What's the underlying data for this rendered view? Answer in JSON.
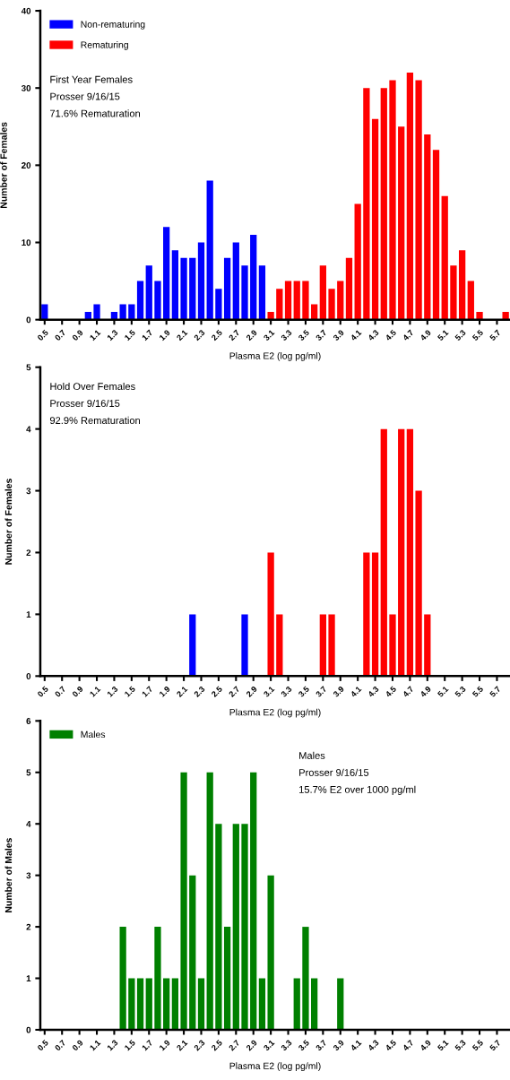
{
  "chart_data": [
    {
      "type": "bar",
      "xlabel": "Plasma E2 (log pg/ml)",
      "ylabel": "Number of Females",
      "annotations": [
        "First Year Females",
        "Prosser 9/16/15",
        "71.6% Rematuration"
      ],
      "series": [
        {
          "name": "Non-rematuring",
          "color": "#0000ff",
          "x": [
            0.5,
            0.6,
            0.7,
            0.8,
            0.9,
            1.0,
            1.1,
            1.2,
            1.3,
            1.4,
            1.5,
            1.6,
            1.7,
            1.8,
            1.9,
            2.0,
            2.1,
            2.2,
            2.3,
            2.4,
            2.5,
            2.6,
            2.7,
            2.8,
            2.9,
            3.0
          ],
          "values": [
            2,
            0,
            0,
            0,
            0,
            1,
            2,
            0,
            1,
            2,
            2,
            5,
            7,
            5,
            12,
            9,
            8,
            8,
            10,
            18,
            4,
            8,
            10,
            7,
            11,
            7
          ]
        },
        {
          "name": "Rematuring",
          "color": "#ff0000",
          "x": [
            3.1,
            3.2,
            3.3,
            3.4,
            3.5,
            3.6,
            3.7,
            3.8,
            3.9,
            4.0,
            4.1,
            4.2,
            4.3,
            4.4,
            4.5,
            4.6,
            4.7,
            4.8,
            4.9,
            5.0,
            5.1,
            5.2,
            5.3,
            5.4,
            5.5,
            5.6,
            5.7,
            5.8
          ],
          "values": [
            1,
            4,
            5,
            5,
            5,
            2,
            7,
            4,
            5,
            8,
            15,
            30,
            26,
            30,
            31,
            25,
            32,
            31,
            24,
            22,
            16,
            7,
            9,
            5,
            1,
            0,
            0,
            1
          ]
        }
      ],
      "xlim": [
        0.45,
        5.85
      ],
      "xticks": [
        0.5,
        0.7,
        0.9,
        1.1,
        1.3,
        1.5,
        1.7,
        1.9,
        2.1,
        2.3,
        2.5,
        2.7,
        2.9,
        3.1,
        3.3,
        3.5,
        3.7,
        3.9,
        4.1,
        4.3,
        4.5,
        4.7,
        4.9,
        5.1,
        5.3,
        5.5,
        5.7
      ],
      "ylim": [
        0,
        40
      ],
      "yticks": [
        0,
        10,
        20,
        30,
        40
      ],
      "grid": false,
      "legend": "top left"
    },
    {
      "type": "bar",
      "xlabel": "Plasma E2 (log pg/ml)",
      "ylabel": "Number of Females",
      "annotations": [
        "Hold Over Females",
        "Prosser 9/16/15",
        "92.9% Rematuration"
      ],
      "series": [
        {
          "color": "#0000ff",
          "x": [
            2.2,
            2.8
          ],
          "values": [
            1,
            1
          ]
        },
        {
          "color": "#ff0000",
          "x": [
            3.1,
            3.2,
            3.7,
            3.8,
            4.2,
            4.3,
            4.4,
            4.5,
            4.6,
            4.7,
            4.8,
            4.9
          ],
          "values": [
            2,
            1,
            1,
            1,
            2,
            2,
            4,
            1,
            4,
            4,
            3,
            1
          ]
        }
      ],
      "xlim": [
        0.45,
        5.85
      ],
      "xticks": [
        0.5,
        0.7,
        0.9,
        1.1,
        1.3,
        1.5,
        1.7,
        1.9,
        2.1,
        2.3,
        2.5,
        2.7,
        2.9,
        3.1,
        3.3,
        3.5,
        3.7,
        3.9,
        4.1,
        4.3,
        4.5,
        4.7,
        4.9,
        5.1,
        5.3,
        5.5,
        5.7
      ],
      "ylim": [
        0,
        5
      ],
      "yticks": [
        0,
        1,
        2,
        3,
        4,
        5
      ],
      "grid": false
    },
    {
      "type": "bar",
      "xlabel": "Plasma E2 (log pg/ml)",
      "ylabel": "Number of Males",
      "annotations": [
        "Males",
        "Prosser 9/16/15",
        "15.7% E2 over 1000 pg/ml"
      ],
      "series": [
        {
          "name": "Males",
          "color": "#008000",
          "x": [
            1.4,
            1.5,
            1.6,
            1.7,
            1.8,
            1.9,
            2.0,
            2.1,
            2.2,
            2.3,
            2.4,
            2.5,
            2.6,
            2.7,
            2.8,
            2.9,
            3.0,
            3.1,
            3.2,
            3.3,
            3.4,
            3.5,
            3.6,
            3.7,
            3.8,
            3.9
          ],
          "values": [
            2,
            1,
            1,
            1,
            2,
            1,
            1,
            5,
            3,
            1,
            5,
            4,
            2,
            4,
            4,
            5,
            1,
            3,
            0,
            0,
            1,
            2,
            1,
            0,
            0,
            1
          ]
        }
      ],
      "xlim": [
        0.45,
        5.85
      ],
      "xticks": [
        0.5,
        0.7,
        0.9,
        1.1,
        1.3,
        1.5,
        1.7,
        1.9,
        2.1,
        2.3,
        2.5,
        2.7,
        2.9,
        3.1,
        3.3,
        3.5,
        3.7,
        3.9,
        4.1,
        4.3,
        4.5,
        4.7,
        4.9,
        5.1,
        5.3,
        5.5,
        5.7
      ],
      "ylim": [
        0,
        6
      ],
      "yticks": [
        0,
        1,
        2,
        3,
        4,
        5,
        6
      ],
      "grid": false,
      "legend": "top left"
    }
  ]
}
